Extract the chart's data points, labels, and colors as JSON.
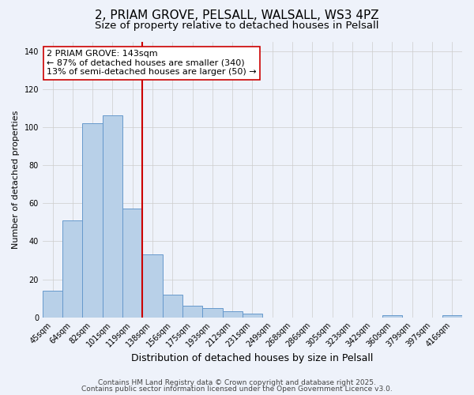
{
  "title": "2, PRIAM GROVE, PELSALL, WALSALL, WS3 4PZ",
  "subtitle": "Size of property relative to detached houses in Pelsall",
  "xlabel": "Distribution of detached houses by size in Pelsall",
  "ylabel": "Number of detached properties",
  "categories": [
    "45sqm",
    "64sqm",
    "82sqm",
    "101sqm",
    "119sqm",
    "138sqm",
    "156sqm",
    "175sqm",
    "193sqm",
    "212sqm",
    "231sqm",
    "249sqm",
    "268sqm",
    "286sqm",
    "305sqm",
    "323sqm",
    "342sqm",
    "360sqm",
    "379sqm",
    "397sqm",
    "416sqm"
  ],
  "values": [
    14,
    51,
    102,
    106,
    57,
    33,
    12,
    6,
    5,
    3,
    2,
    0,
    0,
    0,
    0,
    0,
    0,
    1,
    0,
    0,
    1
  ],
  "bar_color": "#b8d0e8",
  "bar_edge_color": "#6699cc",
  "background_color": "#eef2fa",
  "vline_x_index": 5,
  "vline_color": "#cc0000",
  "annotation_line1": "2 PRIAM GROVE: 143sqm",
  "annotation_line2": "← 87% of detached houses are smaller (340)",
  "annotation_line3": "13% of semi-detached houses are larger (50) →",
  "annotation_box_edge_color": "#cc0000",
  "annotation_box_face_color": "#ffffff",
  "ylim": [
    0,
    145
  ],
  "yticks": [
    0,
    20,
    40,
    60,
    80,
    100,
    120,
    140
  ],
  "footer_line1": "Contains HM Land Registry data © Crown copyright and database right 2025.",
  "footer_line2": "Contains public sector information licensed under the Open Government Licence v3.0.",
  "title_fontsize": 11,
  "subtitle_fontsize": 9.5,
  "xlabel_fontsize": 9,
  "ylabel_fontsize": 8,
  "tick_fontsize": 7,
  "annotation_fontsize": 8,
  "footer_fontsize": 6.5
}
